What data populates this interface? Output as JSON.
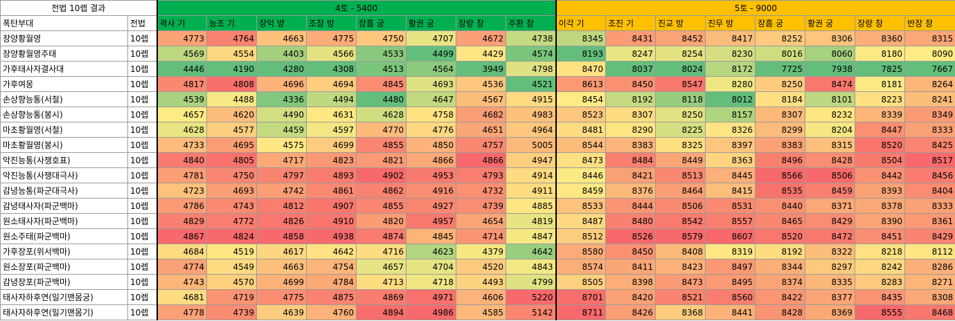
{
  "title": "전법 10렙 결과",
  "header": {
    "name_col": "폭탄부대",
    "level_col": "전법"
  },
  "groups": [
    {
      "label": "4토 - 5400",
      "color": "#00b050",
      "columns": [
        "곽사 기",
        "능조 기",
        "장익 방",
        "조창 방",
        "장흠 궁",
        "황권 궁",
        "장량 창",
        "주환 창"
      ]
    },
    {
      "label": "5토 - 9000",
      "color": "#ffc000",
      "columns": [
        "이각 기",
        "조진 기",
        "진교 방",
        "진무 방",
        "장흠 궁",
        "황권 궁",
        "장량 창",
        "반장 창"
      ]
    }
  ],
  "rows": [
    {
      "name": "장양황월영",
      "level": "10렙",
      "values": [
        4773,
        4764,
        4663,
        4775,
        4750,
        4707,
        4672,
        4738,
        8345,
        8431,
        8452,
        8417,
        8252,
        8306,
        8360,
        8315
      ]
    },
    {
      "name": "장양황월영주태",
      "level": "10렙",
      "values": [
        4569,
        4554,
        4403,
        4566,
        4533,
        4499,
        4429,
        4574,
        8193,
        8247,
        8254,
        8230,
        8016,
        8060,
        8180,
        8090
      ]
    },
    {
      "name": "가후태사자결사대",
      "level": "10렙",
      "values": [
        4446,
        4190,
        4280,
        4308,
        4513,
        4564,
        3949,
        4798,
        8470,
        8037,
        8024,
        8172,
        7725,
        7938,
        7825,
        7667
      ]
    },
    {
      "name": "가후여몽",
      "level": "10렙",
      "values": [
        4817,
        4808,
        4696,
        4694,
        4845,
        4693,
        4536,
        4521,
        8613,
        8450,
        8547,
        8280,
        8250,
        8474,
        8181,
        8264
      ]
    },
    {
      "name": "손상향능통(서철)",
      "level": "10렙",
      "values": [
        4539,
        4488,
        4336,
        4494,
        4480,
        4647,
        4567,
        4915,
        8454,
        8192,
        8118,
        8012,
        8184,
        8101,
        8223,
        8241
      ]
    },
    {
      "name": "손상향능통(봉시)",
      "level": "10렙",
      "values": [
        4657,
        4620,
        4490,
        4631,
        4628,
        4758,
        4682,
        4983,
        8523,
        8307,
        8250,
        8157,
        8307,
        8232,
        8339,
        8349
      ]
    },
    {
      "name": "마초황월영(서철)",
      "level": "10렙",
      "values": [
        4628,
        4577,
        4459,
        4597,
        4770,
        4776,
        4651,
        4964,
        8481,
        8290,
        8225,
        8326,
        8299,
        8204,
        8447,
        8333
      ]
    },
    {
      "name": "마초황월영(봉시)",
      "level": "10렙",
      "values": [
        4733,
        4695,
        4575,
        4699,
        4855,
        4850,
        4757,
        5005,
        8544,
        8383,
        8325,
        8397,
        8383,
        8315,
        8520,
        8425
      ]
    },
    {
      "name": "악진능통(사쟁호표)",
      "level": "10렙",
      "values": [
        4840,
        4805,
        4717,
        4823,
        4821,
        4866,
        4866,
        4947,
        8473,
        8484,
        8449,
        8363,
        8496,
        8428,
        8504,
        8517
      ]
    },
    {
      "name": "악진능통(사쟁대극사)",
      "level": "10렙",
      "values": [
        4781,
        4750,
        4797,
        4893,
        4902,
        4953,
        4793,
        4914,
        8446,
        8421,
        8513,
        8445,
        8566,
        8506,
        8442,
        8456
      ]
    },
    {
      "name": "감녕능통(파군대극사)",
      "level": "10렙",
      "values": [
        4723,
        4693,
        4742,
        4861,
        4862,
        4916,
        4732,
        4911,
        8459,
        8376,
        8464,
        8415,
        8535,
        8459,
        8393,
        8404
      ]
    },
    {
      "name": "감녕태사자(파군백마)",
      "level": "10렙",
      "values": [
        4786,
        4743,
        4812,
        4907,
        4855,
        4927,
        4739,
        4885,
        8533,
        8444,
        8506,
        8531,
        8440,
        8371,
        8378,
        8333
      ]
    },
    {
      "name": "원소태사자(파군백마)",
      "level": "10렙",
      "values": [
        4829,
        4772,
        4826,
        4910,
        4820,
        4957,
        4654,
        4819,
        8487,
        8480,
        8542,
        8557,
        8465,
        8429,
        8390,
        8361
      ]
    },
    {
      "name": "원소주태(파군백마)",
      "level": "10렙",
      "values": [
        4867,
        4824,
        4858,
        4938,
        4874,
        4845,
        4714,
        4847,
        8512,
        8526,
        8579,
        8607,
        8520,
        8472,
        8451,
        8429
      ]
    },
    {
      "name": "가후장포(위서백마)",
      "level": "10렙",
      "values": [
        4684,
        4519,
        4617,
        4642,
        4716,
        4623,
        4379,
        4642,
        8580,
        8450,
        8408,
        8319,
        8192,
        8322,
        8218,
        8112
      ]
    },
    {
      "name": "원소장포(파군백마)",
      "level": "10렙",
      "values": [
        4774,
        4549,
        4663,
        4754,
        4657,
        4704,
        4520,
        4843,
        8574,
        8411,
        8423,
        8497,
        8344,
        8297,
        8242,
        8286
      ]
    },
    {
      "name": "감녕장포(파군백마)",
      "level": "10렙",
      "values": [
        4743,
        4570,
        4699,
        4784,
        4713,
        4718,
        4493,
        4799,
        8505,
        8398,
        8473,
        8495,
        8374,
        8335,
        8283,
        8271
      ]
    },
    {
      "name": "태사자하후연(일기맨몸궁)",
      "level": "10렙",
      "values": [
        4681,
        4719,
        4775,
        4875,
        4869,
        4971,
        4606,
        5220,
        8701,
        8420,
        8521,
        8560,
        8422,
        8377,
        8435,
        8308
      ]
    },
    {
      "name": "태사자하후연(일기맨몸기)",
      "level": "10렙",
      "values": [
        4778,
        4739,
        4639,
        4760,
        4894,
        4986,
        4585,
        5142,
        8711,
        8426,
        8368,
        8441,
        8428,
        8369,
        8555,
        8468
      ]
    }
  ]
}
